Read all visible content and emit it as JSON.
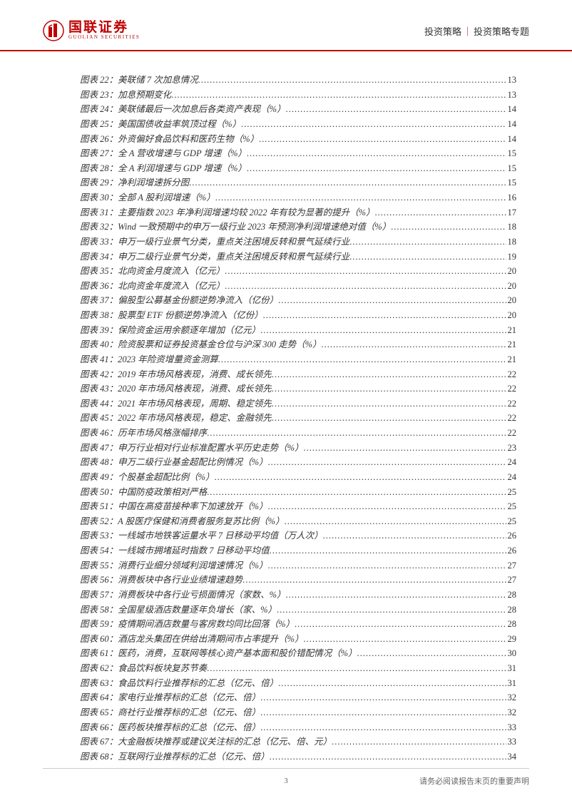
{
  "header": {
    "logo_cn": "国联证券",
    "logo_en": "GUOLIAN SECURITIES",
    "logo_color": "#c00000",
    "right_text_1": "投资策略",
    "right_sep": "｜",
    "right_text_2": "投资策略专题"
  },
  "toc": [
    {
      "num": "22",
      "title": "美联储 7 次加息情况",
      "page": "13"
    },
    {
      "num": "23",
      "title": "加息预期变化",
      "page": "13"
    },
    {
      "num": "24",
      "title": "美联储最后一次加息后各类资产表现（%）",
      "page": "14"
    },
    {
      "num": "25",
      "title": "美国国债收益率筑顶过程（%）",
      "page": "14"
    },
    {
      "num": "26",
      "title": "外资偏好食品饮料和医药生物（%）",
      "page": "14"
    },
    {
      "num": "27",
      "title": "全 A 营收增速与 GDP 增速（%）",
      "page": "15"
    },
    {
      "num": "28",
      "title": "全 A 利润增速与 GDP 增速（%）",
      "page": "15"
    },
    {
      "num": "29",
      "title": "净利润增速拆分图",
      "page": "15"
    },
    {
      "num": "30",
      "title": "全部 A 股利润增速（%）",
      "page": "16"
    },
    {
      "num": "31",
      "title": "主要指数 2023 年净利润增速均较 2022 年有较为显著的提升（%）",
      "page": "17"
    },
    {
      "num": "32",
      "title": "Wind 一致预期中的申万一级行业 2023 年预测净利润增速绝对值（%）",
      "page": "18"
    },
    {
      "num": "33",
      "title": "申万一级行业景气分类，重点关注困境反转和景气延续行业",
      "page": "18"
    },
    {
      "num": "34",
      "title": "申万二级行业景气分类，重点关注困境反转和景气延续行业",
      "page": "19"
    },
    {
      "num": "35",
      "title": "北向资金月度流入（亿元）",
      "page": "20"
    },
    {
      "num": "36",
      "title": "北向资金年度流入（亿元）",
      "page": "20"
    },
    {
      "num": "37",
      "title": "偏股型公募基金份额逆势净流入（亿份）",
      "page": "20"
    },
    {
      "num": "38",
      "title": "股票型 ETF 份额逆势净流入（亿份）",
      "page": "20"
    },
    {
      "num": "39",
      "title": "保险资金运用余额逐年增加（亿元）",
      "page": "21"
    },
    {
      "num": "40",
      "title": "险资股票和证券投资基金仓位与沪深 300 走势（%）",
      "page": "21"
    },
    {
      "num": "41",
      "title": "2023 年险资增量资金测算",
      "page": "21"
    },
    {
      "num": "42",
      "title": "2019 年市场风格表现，消费、成长领先",
      "page": "22"
    },
    {
      "num": "43",
      "title": "2020 年市场风格表现，消费、成长领先",
      "page": "22"
    },
    {
      "num": "44",
      "title": "2021 年市场风格表现，周期、稳定领先",
      "page": "22"
    },
    {
      "num": "45",
      "title": "2022 年市场风格表现，稳定、金融领先",
      "page": "22"
    },
    {
      "num": "46",
      "title": "历年市场风格涨幅排序",
      "page": "22"
    },
    {
      "num": "47",
      "title": "申万行业相对行业标准配置水平历史走势（%）",
      "page": "23"
    },
    {
      "num": "48",
      "title": "申万二级行业基金超配比例情况（%）",
      "page": "24"
    },
    {
      "num": "49",
      "title": "个股基金超配比例（%）",
      "page": "24"
    },
    {
      "num": "50",
      "title": "中国防疫政策相对严格",
      "page": "25"
    },
    {
      "num": "51",
      "title": "中国在高疫苗接种率下加速放开（%）",
      "page": "25"
    },
    {
      "num": "52",
      "title": "A 股医疗保健和消费者服务复苏比例（%）",
      "page": "25"
    },
    {
      "num": "53",
      "title": "一线城市地铁客运量水平 7 日移动平均值（万人次）",
      "page": "26"
    },
    {
      "num": "54",
      "title": "一线城市拥堵延时指数 7 日移动平均值",
      "page": "26"
    },
    {
      "num": "55",
      "title": "消费行业细分领域利润增速情况（%）",
      "page": "27"
    },
    {
      "num": "56",
      "title": "消费板块中各行业业绩增速趋势",
      "page": "27"
    },
    {
      "num": "57",
      "title": "消费板块中各行业亏损面情况（家数、%）",
      "page": "28"
    },
    {
      "num": "58",
      "title": "全国星级酒店数量逐年负增长（家、%）",
      "page": "28"
    },
    {
      "num": "59",
      "title": "疫情期间酒店数量与客房数均同比回落（%）",
      "page": "28"
    },
    {
      "num": "60",
      "title": "酒店龙头集团在供给出清期间市占率提升（%）",
      "page": "29"
    },
    {
      "num": "61",
      "title": "医药，消费，互联网等核心资产基本面和股价错配情况（%）",
      "page": "30"
    },
    {
      "num": "62",
      "title": "食品饮料板块复苏节奏",
      "page": "31"
    },
    {
      "num": "63",
      "title": "食品饮料行业推荐标的汇总（亿元、倍）",
      "page": "31"
    },
    {
      "num": "64",
      "title": "家电行业推荐标的汇总（亿元、倍）",
      "page": "32"
    },
    {
      "num": "65",
      "title": "商社行业推荐标的汇总（亿元、倍）",
      "page": "32"
    },
    {
      "num": "66",
      "title": "医药板块推荐标的汇总（亿元、倍）",
      "page": "33"
    },
    {
      "num": "67",
      "title": "大金融板块推荐或建议关注标的汇总（亿元、倍、元）",
      "page": "33"
    },
    {
      "num": "68",
      "title": "互联网行业推荐标的汇总（亿元、倍）",
      "page": "34"
    }
  ],
  "toc_prefix": "图表 ",
  "toc_colon": "：",
  "footer": {
    "page_num": "3",
    "right_text": "请务必阅读报告末页的重要声明"
  },
  "colors": {
    "accent": "#c00000",
    "text": "#333333",
    "footer_text": "#666666",
    "background": "#ffffff"
  },
  "typography": {
    "body_fontsize": 12.5,
    "header_fontsize": 13,
    "footer_fontsize": 11,
    "logo_cn_fontsize": 19,
    "logo_en_fontsize": 7
  }
}
